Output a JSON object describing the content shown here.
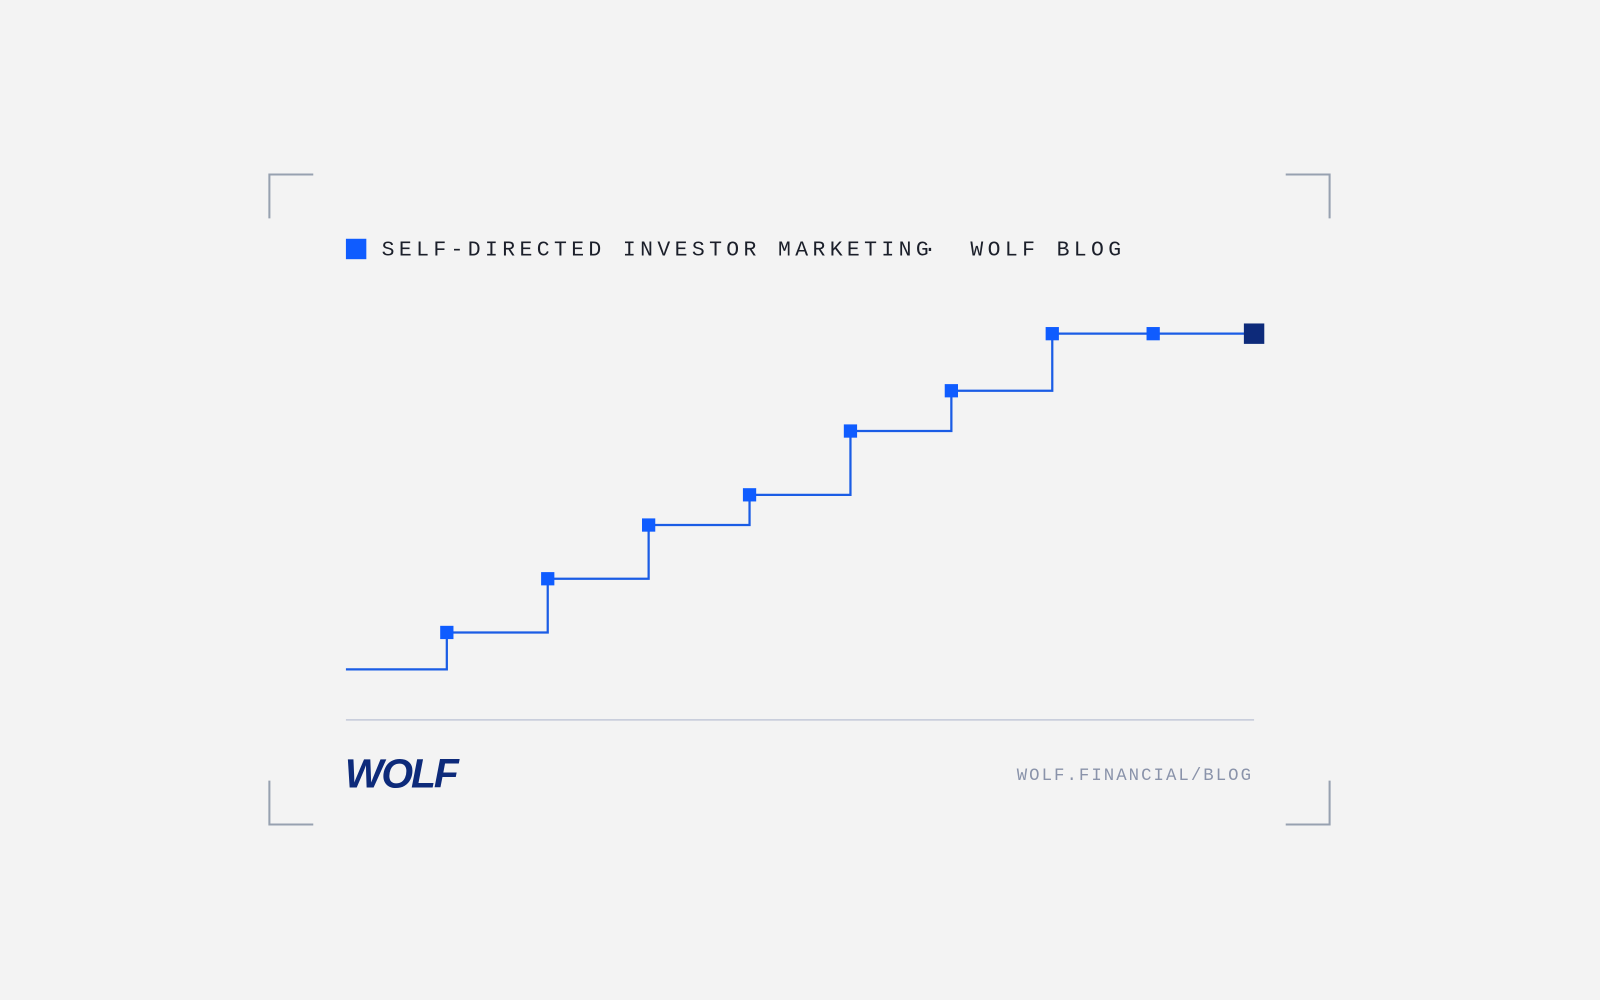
{
  "chart_data": {
    "type": "step",
    "title": "SELF-DIRECTED INVESTOR MARKETING",
    "separator": "·",
    "subtitle": "WOLF BLOG",
    "logo": "WOLF",
    "url": "WOLF.FINANCIAL/BLOG",
    "x": [
      0,
      1,
      2,
      3,
      4,
      5,
      6,
      7,
      8,
      9
    ],
    "values": [
      0,
      11,
      27,
      43,
      52,
      71,
      83,
      100,
      100,
      100
    ],
    "xlim": [
      0,
      9
    ],
    "ylim": [
      0,
      100
    ],
    "color": "#1a5ce5",
    "marker_color": "#0f5cff",
    "last_marker_color": "#0d2a7a"
  }
}
